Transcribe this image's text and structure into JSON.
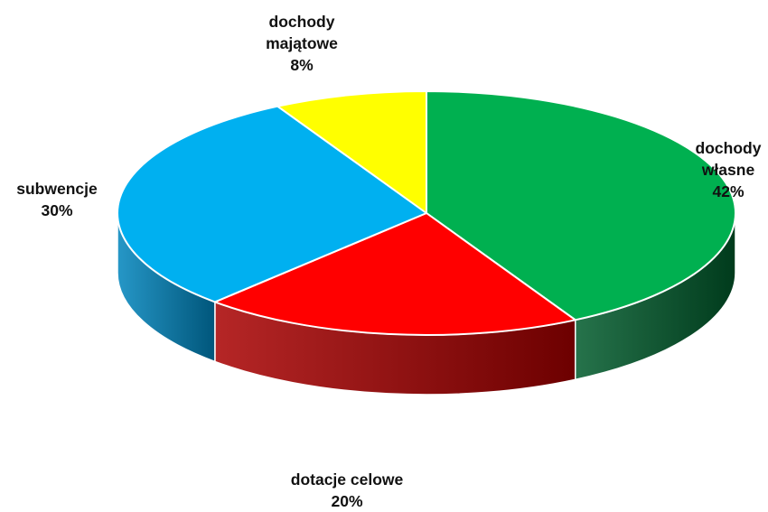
{
  "chart_data": {
    "type": "pie",
    "style": "3d",
    "slices": [
      {
        "label_lines": [
          "dochody",
          "własne"
        ],
        "value": 42,
        "value_label": "42%",
        "color": "#00b050",
        "side_color": "#005a2b"
      },
      {
        "label_lines": [
          "dotacje celowe"
        ],
        "value": 20,
        "value_label": "20%",
        "color": "#ff0000",
        "side_color": "#a80000"
      },
      {
        "label_lines": [
          "subwencje"
        ],
        "value": 30,
        "value_label": "30%",
        "color": "#00b0f0",
        "side_color": "#0085bd"
      },
      {
        "label_lines": [
          "dochody",
          "majątowe"
        ],
        "value": 8,
        "value_label": "8%",
        "color": "#ffff00",
        "side_color": "#b3b300"
      }
    ]
  }
}
